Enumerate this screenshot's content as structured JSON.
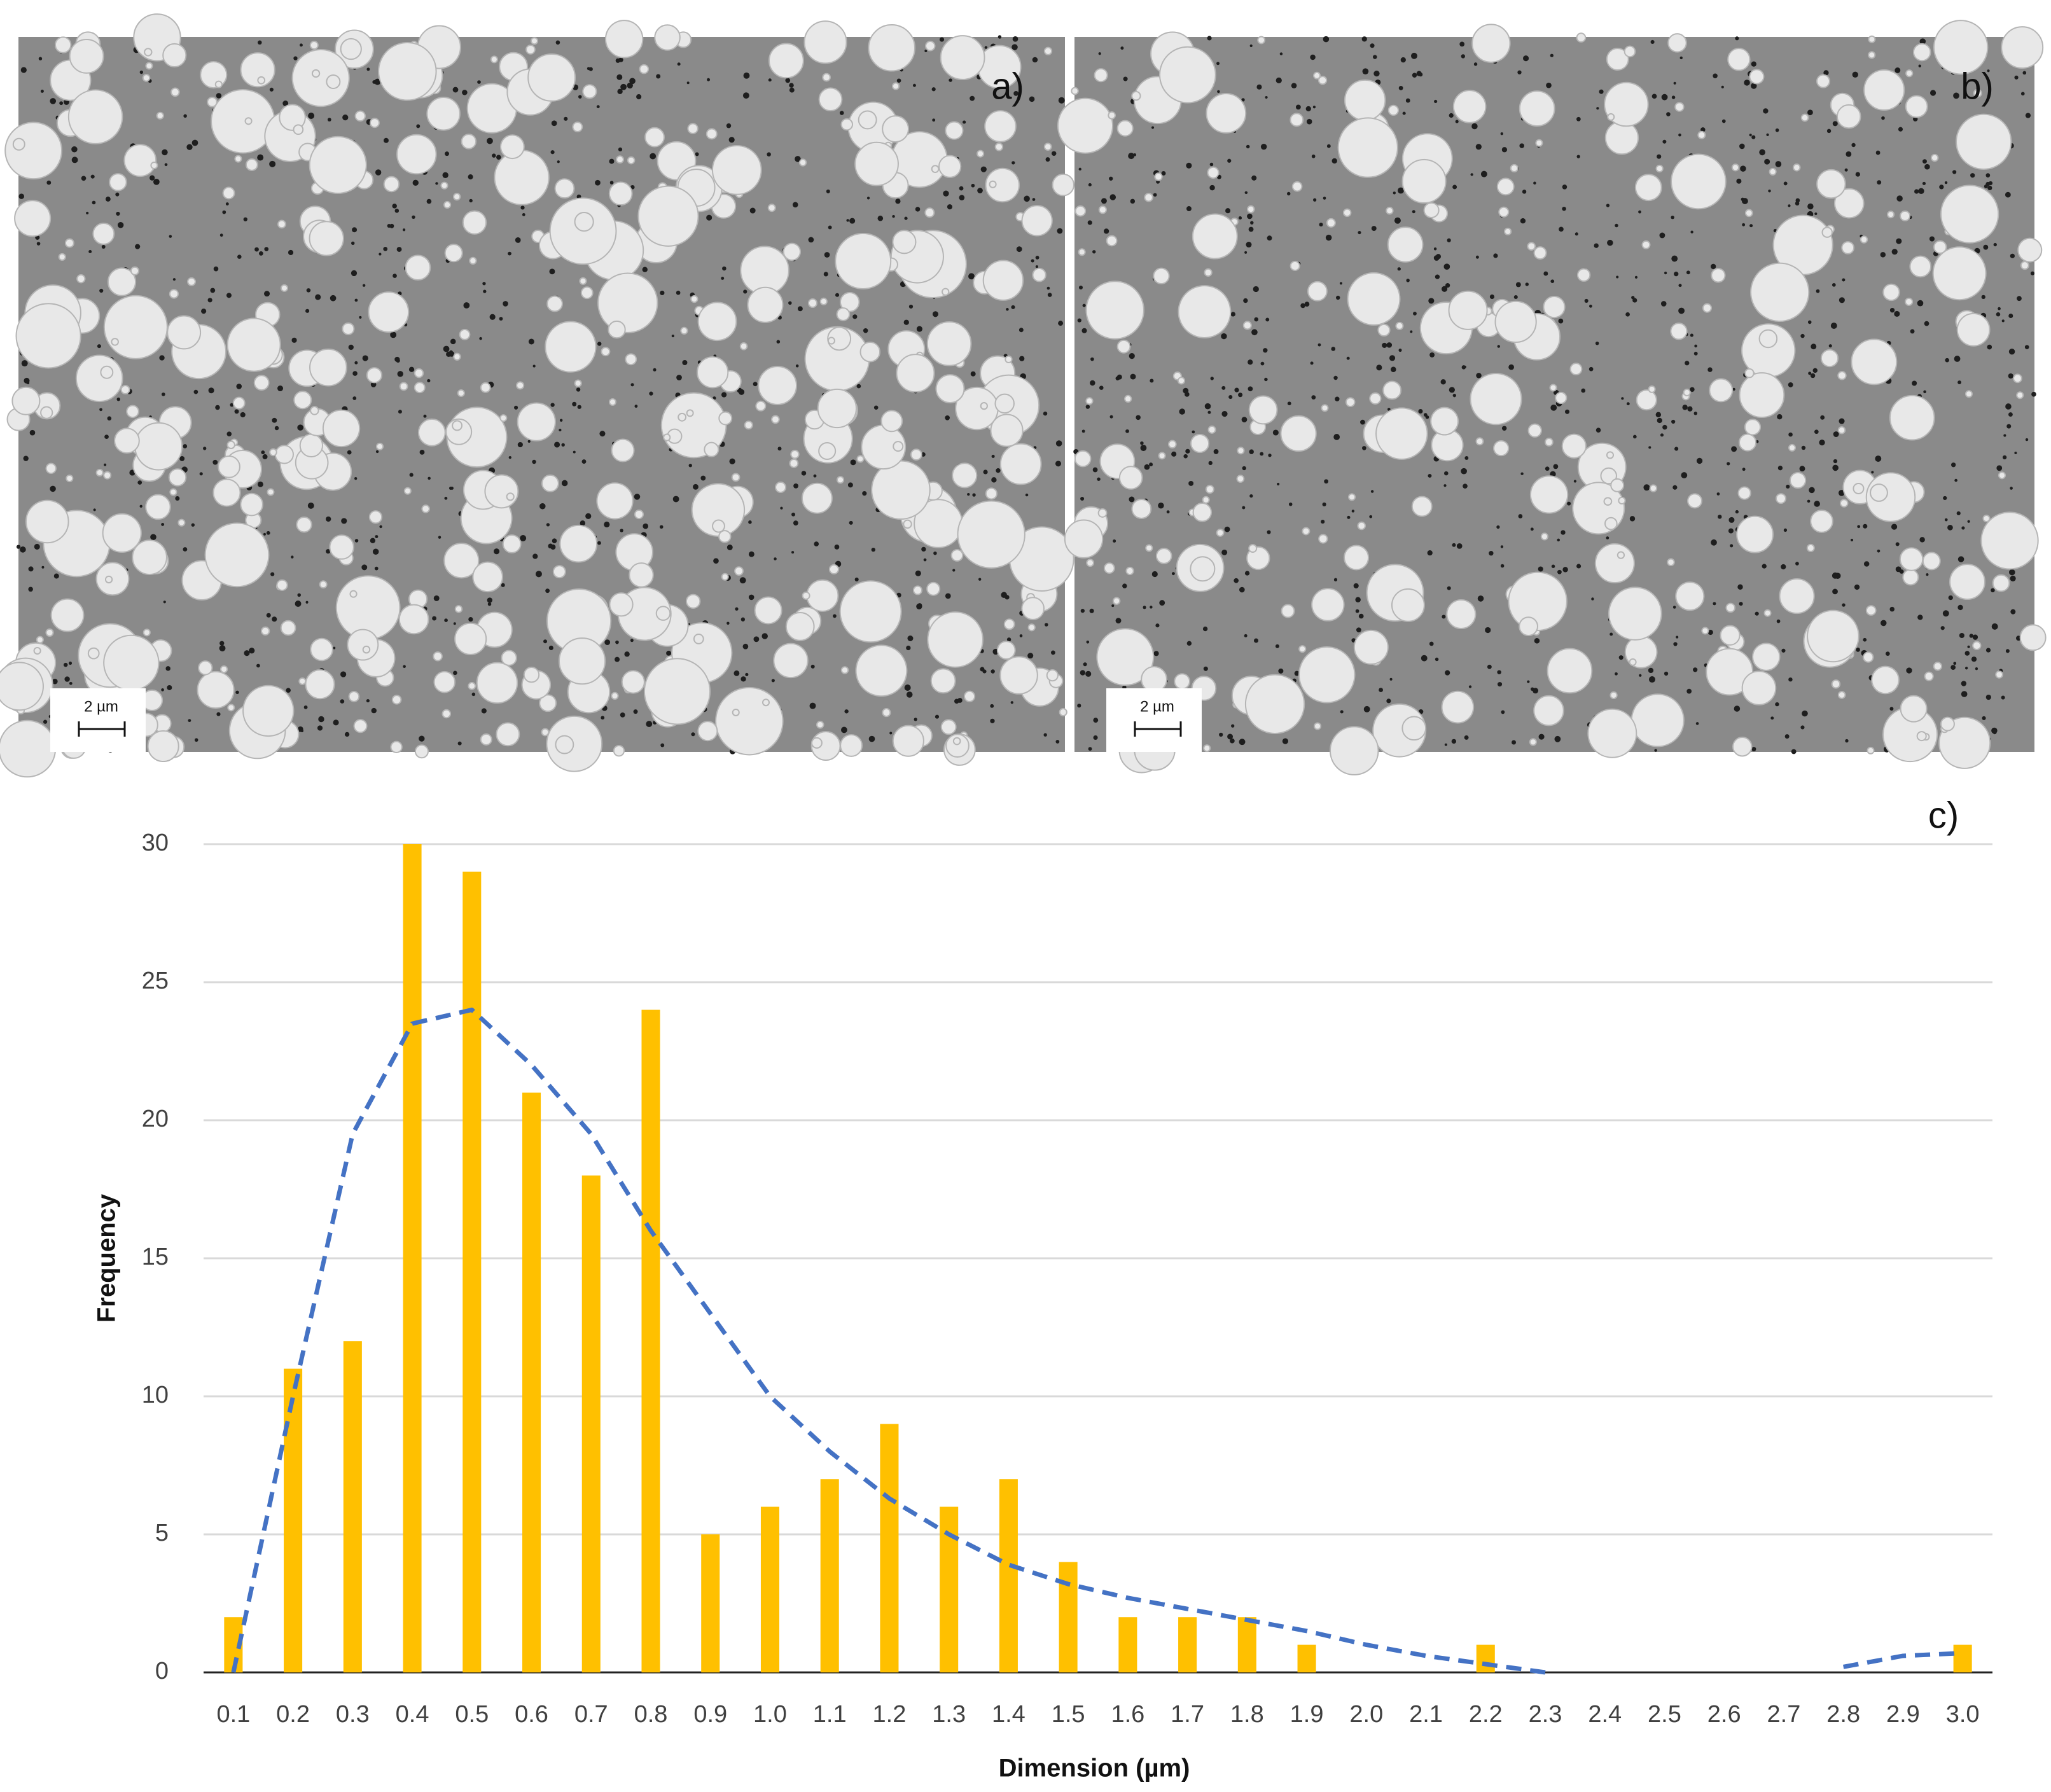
{
  "images": [
    {
      "label": "a)",
      "scale": "2 µm"
    },
    {
      "label": "b)",
      "scale": "2 µm"
    }
  ],
  "chart_data": {
    "type": "bar",
    "label": "c)",
    "x_label": "Dimension (µm)",
    "y_label": "Frequency",
    "categories": [
      "0.1",
      "0.2",
      "0.3",
      "0.4",
      "0.5",
      "0.6",
      "0.7",
      "0.8",
      "0.9",
      "1.0",
      "1.1",
      "1.2",
      "1.3",
      "1.4",
      "1.5",
      "1.6",
      "1.7",
      "1.8",
      "1.9",
      "2.0",
      "2.1",
      "2.2",
      "2.3",
      "2.4",
      "2.5",
      "2.6",
      "2.7",
      "2.8",
      "2.9",
      "3.0"
    ],
    "series": [
      {
        "type": "bar",
        "color": "#ffc000",
        "values": [
          2,
          11,
          12,
          30,
          29,
          21,
          18,
          24,
          5,
          6,
          7,
          9,
          6,
          7,
          4,
          2,
          2,
          2,
          1,
          0,
          0,
          1,
          0,
          0,
          0,
          0,
          0,
          0,
          0,
          1
        ]
      },
      {
        "type": "line",
        "dashed": true,
        "color": "#4472c4",
        "values": [
          0,
          10,
          19.5,
          23.5,
          24,
          22,
          19.5,
          16,
          13,
          10,
          8,
          6.3,
          5,
          3.9,
          3.2,
          2.7,
          2.3,
          1.9,
          1.5,
          1,
          0.6,
          0.3,
          0,
          null,
          null,
          null,
          null,
          0.2,
          0.6,
          0.7
        ]
      }
    ],
    "ylim": [
      0,
      30
    ],
    "yticks": [
      0,
      5,
      10,
      15,
      20,
      25,
      30
    ],
    "grid": true
  }
}
